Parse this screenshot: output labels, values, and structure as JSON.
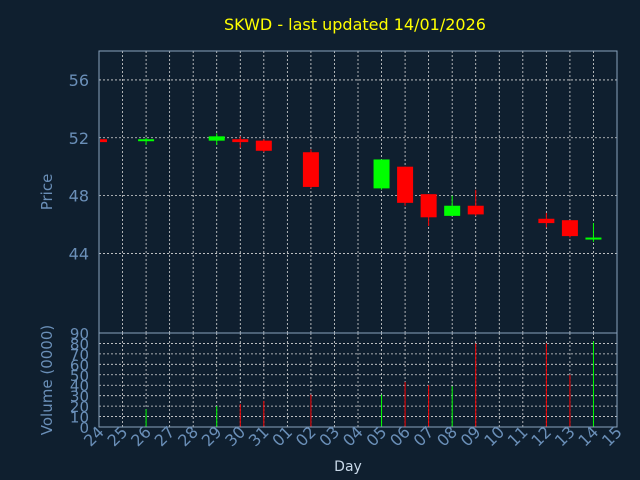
{
  "chart_data": {
    "type": "candlestick",
    "title": "SKWD - last updated 14/01/2026",
    "price_panel": {
      "ylabel": "Price",
      "ylim": [
        38.5,
        58
      ],
      "yticks": [
        44,
        48,
        52,
        56
      ],
      "grid": true
    },
    "volume_panel": {
      "ylabel": "Volume (0000)",
      "ylim": [
        0,
        90
      ],
      "yticks": [
        0,
        10,
        20,
        30,
        40,
        50,
        60,
        70,
        80,
        90
      ],
      "grid": true
    },
    "xlabel": "Day",
    "x_tick_labels": [
      "24",
      "25",
      "26",
      "27",
      "28",
      "29",
      "30",
      "31",
      "01",
      "02",
      "03",
      "04",
      "05",
      "06",
      "07",
      "08",
      "09",
      "10",
      "11",
      "12",
      "13",
      "14",
      "15"
    ],
    "candles": [
      {
        "x": 0,
        "open": 51.9,
        "high": 52.0,
        "low": 51.6,
        "close": 51.7,
        "volume": 0
      },
      {
        "x": 2,
        "open": 51.8,
        "high": 52.0,
        "low": 51.5,
        "close": 51.9,
        "volume": 17
      },
      {
        "x": 5,
        "open": 51.8,
        "high": 52.3,
        "low": 51.5,
        "close": 52.1,
        "volume": 20
      },
      {
        "x": 6,
        "open": 51.9,
        "high": 52.1,
        "low": 51.3,
        "close": 51.7,
        "volume": 22
      },
      {
        "x": 7,
        "open": 51.8,
        "high": 51.9,
        "low": 51.0,
        "close": 51.1,
        "volume": 25
      },
      {
        "x": 9,
        "open": 51.0,
        "high": 51.2,
        "low": 48.5,
        "close": 48.6,
        "volume": 31
      },
      {
        "x": 12,
        "open": 48.5,
        "high": 50.5,
        "low": 48.4,
        "close": 50.5,
        "volume": 31
      },
      {
        "x": 13,
        "open": 50.0,
        "high": 50.0,
        "low": 47.3,
        "close": 47.5,
        "volume": 43
      },
      {
        "x": 14,
        "open": 48.1,
        "high": 48.1,
        "low": 45.9,
        "close": 46.5,
        "volume": 40
      },
      {
        "x": 15,
        "open": 46.6,
        "high": 48.0,
        "low": 46.6,
        "close": 47.3,
        "volume": 39
      },
      {
        "x": 16,
        "open": 47.3,
        "high": 48.4,
        "low": 46.6,
        "close": 46.7,
        "volume": 80
      },
      {
        "x": 19,
        "open": 46.4,
        "high": 46.8,
        "low": 45.8,
        "close": 46.1,
        "volume": 80
      },
      {
        "x": 20,
        "open": 46.3,
        "high": 46.3,
        "low": 45.1,
        "close": 45.2,
        "volume": 50
      },
      {
        "x": 21,
        "open": 45.0,
        "high": 46.1,
        "low": 44.8,
        "close": 45.1,
        "volume": 82
      }
    ],
    "colors": {
      "up": "#00ff00",
      "down": "#ff0000",
      "background": "#0f1f2f",
      "title": "#ffff00",
      "axis_text": "#6a8fb8"
    }
  }
}
